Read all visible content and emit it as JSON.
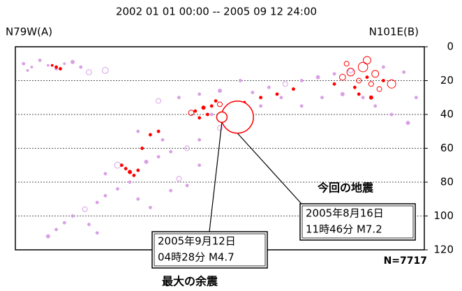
{
  "chart_data": {
    "type": "scatter",
    "subtitle": "2002 01 01 00:00 -- 2005 09 12 24:00",
    "label_left": "N79W(A)",
    "label_right": "N101E(B)",
    "count_label": "N=7717",
    "xlim": [
      0,
      100
    ],
    "ylim": [
      0,
      120
    ],
    "yticks": [
      0,
      20,
      40,
      60,
      80,
      100,
      120
    ],
    "y_inverted": true,
    "grid": true,
    "series": [
      {
        "color": "#d9a0e6",
        "x": [
          2,
          4,
          6,
          8,
          10,
          12,
          14,
          3,
          16,
          18,
          22,
          35,
          40,
          45,
          50,
          58,
          62,
          66,
          70,
          74,
          78,
          82,
          90,
          95,
          98,
          96,
          92,
          88,
          60,
          65,
          55,
          50,
          45,
          42,
          38,
          35,
          32,
          28,
          25,
          22,
          20,
          17,
          14,
          12,
          10,
          8,
          40,
          42,
          38,
          45,
          36,
          30,
          25,
          22,
          30,
          33,
          20,
          18,
          70,
          75,
          80,
          85,
          55,
          52,
          48
        ],
        "y": [
          10,
          12,
          8,
          11,
          13,
          10,
          9,
          14,
          12,
          15,
          14,
          32,
          30,
          28,
          26,
          27,
          24,
          22,
          20,
          18,
          16,
          14,
          12,
          15,
          30,
          45,
          40,
          35,
          35,
          30,
          45,
          48,
          55,
          60,
          62,
          65,
          68,
          80,
          84,
          88,
          92,
          96,
          100,
          104,
          108,
          112,
          78,
          82,
          85,
          70,
          55,
          50,
          70,
          75,
          90,
          95,
          110,
          105,
          35,
          30,
          28,
          30,
          20,
          35,
          40
        ],
        "sizes": [
          2,
          1.5,
          2,
          1.5,
          2,
          1.5,
          2.5,
          1.5,
          2,
          3.2,
          3.5,
          3,
          2,
          2,
          2.5,
          2,
          2,
          3,
          2,
          2.5,
          2,
          3,
          2,
          2,
          2,
          2.5,
          2,
          2,
          2,
          2,
          2,
          3,
          2,
          3,
          2,
          2,
          2.5,
          2,
          2,
          2,
          2,
          3,
          2,
          2,
          2,
          2.5,
          3,
          2,
          2,
          2,
          2,
          2,
          3.5,
          2,
          2,
          2,
          2,
          2,
          2,
          2,
          2.5,
          2,
          2,
          2,
          2
        ]
      },
      {
        "color": "#ff0000",
        "x": [
          10,
          11,
          9,
          27,
          28,
          29,
          26,
          30,
          31,
          33,
          35,
          44,
          46,
          48,
          50,
          52,
          47,
          45,
          43,
          49,
          56,
          60,
          64,
          68,
          80,
          82,
          84,
          85,
          86,
          87,
          88,
          83,
          89,
          90,
          81,
          86,
          92,
          78,
          84,
          87
        ],
        "y": [
          12,
          13,
          11,
          72,
          74,
          76,
          70,
          73,
          60,
          52,
          50,
          38,
          36,
          35,
          34,
          37,
          40,
          42,
          39,
          32,
          33,
          30,
          28,
          25,
          18,
          15,
          20,
          12,
          18,
          22,
          16,
          24,
          25,
          20,
          10,
          8,
          22,
          22,
          28,
          30
        ],
        "sizes": [
          2,
          2,
          1.5,
          2,
          2.5,
          2,
          2,
          2,
          2,
          2,
          2,
          2,
          2.5,
          2,
          3,
          2,
          2,
          2,
          3.2,
          2,
          2,
          2,
          2,
          2,
          3.5,
          4,
          3,
          4.5,
          2,
          3,
          3.8,
          2,
          3,
          2,
          3,
          4,
          4.2,
          2,
          2,
          2.5
        ]
      }
    ],
    "annotations": [
      {
        "title": "今回の地震",
        "lines": [
          "2005年8月16日",
          "11時46分 M7.2"
        ],
        "x": 54.3,
        "y": 41.6,
        "size": 7.2,
        "color": "#ff0000"
      },
      {
        "title": "最大の余震",
        "lines": [
          "2005年9月12日",
          "04時28分 M4.7"
        ],
        "x": 50.5,
        "y": 41.6,
        "size": 4.7,
        "color": "#ff0000"
      }
    ]
  }
}
